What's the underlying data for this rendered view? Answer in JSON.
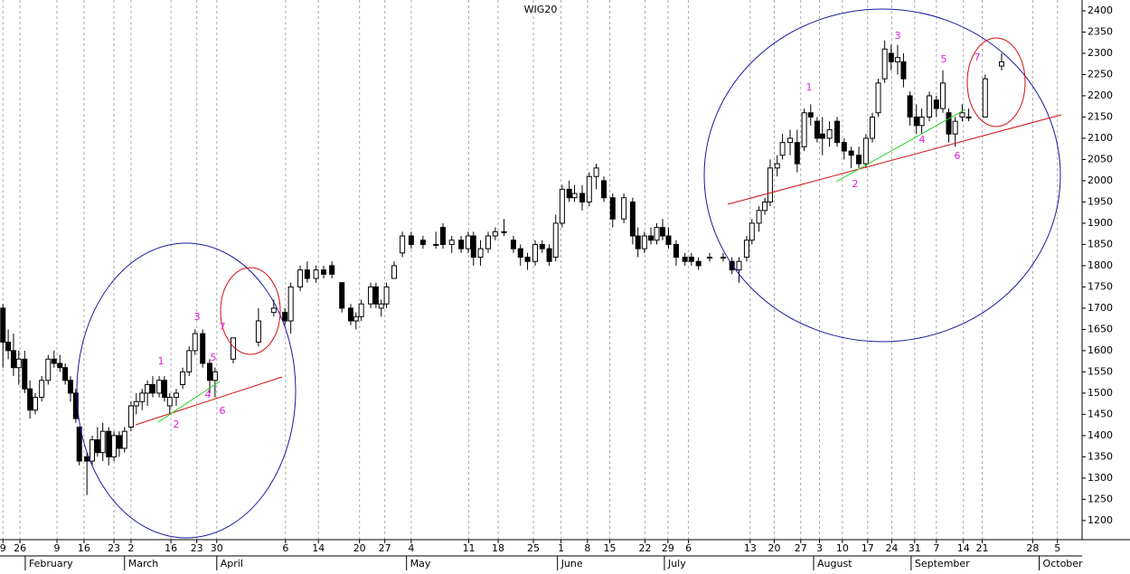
{
  "chart_data": {
    "type": "candlestick",
    "title": "WIG20",
    "x": [
      0.5,
      1.4,
      2.3,
      3.2,
      4.2,
      5.1,
      6,
      7.1,
      8.2,
      9.2,
      10.2,
      11.1,
      12,
      12.9,
      13.5,
      14.8,
      15.7,
      16.6,
      17.5,
      18.5,
      19.4,
      20.3,
      21.2,
      22.3,
      23.2,
      24.2,
      25.1,
      26,
      27.1,
      28,
      28.9,
      30,
      31.1,
      32.2,
      33.2,
      34.5,
      35.7,
      36.6,
      39.7,
      44,
      46.6,
      48.5,
      49.5,
      51.1,
      52.3,
      53.8,
      55.1,
      56.5,
      58.2,
      59.7,
      60.6,
      61.5,
      63.1,
      64,
      64.9,
      65.8,
      67.1,
      68.5,
      70,
      72,
      74.2,
      75.4,
      76.9,
      78.5,
      79.7,
      80.6,
      81.8,
      83.1,
      84.3,
      85.8,
      87.4,
      88.6,
      89.8,
      91.1,
      92.3,
      93.5,
      94.6,
      95.7,
      96.9,
      97.8,
      99.1,
      100.3,
      101.5,
      102.8,
      104.3,
      106.2,
      107.7,
      108.6,
      109.7,
      110.8,
      111.8,
      112.8,
      113.8,
      115.1,
      116.6,
      117.7,
      118.9,
      120.8,
      123.1,
      124.6,
      125.8,
      127.1,
      128,
      129.2,
      130.2,
      131.1,
      132.3,
      133.2,
      134.5,
      135.7,
      136.9,
      138,
      139.1,
      140,
      141.2,
      142.5,
      143.7,
      144.9,
      146.2,
      147.4,
      148.5,
      149.5,
      150.6,
      151.7,
      152.8,
      153.8,
      154.9,
      156,
      156.9,
      158.2,
      159.4,
      160.5,
      161.5,
      162.6,
      163.8,
      164.9,
      167.7,
      170.5
    ],
    "open": [
      1700,
      1620,
      1600,
      1560,
      1580,
      1510,
      1460,
      1490,
      1530,
      1580,
      1570,
      1560,
      1530,
      1500,
      1420,
      1350,
      1340,
      1390,
      1360,
      1410,
      1350,
      1400,
      1370,
      1420,
      1470,
      1480,
      1500,
      1520,
      1500,
      1530,
      1470,
      1490,
      1520,
      1550,
      1600,
      1640,
      1570,
      1530,
      1580,
      1620,
      1690,
      1690,
      1670,
      1750,
      1790,
      1770,
      1790,
      1800,
      1760,
      1700,
      1670,
      1680,
      1710,
      1750,
      1700,
      1710,
      1770,
      1830,
      1870,
      1860,
      1850,
      1890,
      1850,
      1860,
      1840,
      1870,
      1820,
      1840,
      1870,
      1880,
      1860,
      1840,
      1820,
      1810,
      1850,
      1840,
      1820,
      1900,
      1980,
      1960,
      1970,
      1950,
      2010,
      2000,
      1960,
      1910,
      1950,
      1870,
      1840,
      1870,
      1860,
      1890,
      1870,
      1850,
      1820,
      1820,
      1810,
      1820,
      1820,
      1810,
      1790,
      1820,
      1860,
      1900,
      1930,
      1950,
      2030,
      2060,
      2090,
      2090,
      2080,
      2160,
      2140,
      2110,
      2100,
      2140,
      2090,
      2070,
      2060,
      2040,
      2100,
      2160,
      2240,
      2300,
      2280,
      2280,
      2200,
      2150,
      2130,
      2150,
      2190,
      2170,
      2160,
      2110,
      2150,
      2150,
      2150,
      2270
    ],
    "high": [
      1710,
      1650,
      1640,
      1600,
      1600,
      1530,
      1500,
      1540,
      1590,
      1600,
      1590,
      1570,
      1540,
      1510,
      1420,
      1360,
      1400,
      1420,
      1430,
      1420,
      1410,
      1410,
      1420,
      1480,
      1500,
      1510,
      1530,
      1540,
      1540,
      1540,
      1500,
      1510,
      1560,
      1610,
      1650,
      1650,
      1580,
      1560,
      1630,
      1700,
      1720,
      1700,
      1760,
      1800,
      1810,
      1800,
      1800,
      1810,
      1760,
      1710,
      1690,
      1720,
      1760,
      1760,
      1720,
      1760,
      1810,
      1880,
      1880,
      1870,
      1880,
      1900,
      1870,
      1870,
      1880,
      1880,
      1860,
      1880,
      1890,
      1910,
      1870,
      1850,
      1830,
      1860,
      1860,
      1850,
      1920,
      1990,
      2000,
      1990,
      1990,
      2020,
      2040,
      2010,
      1970,
      1970,
      1960,
      1890,
      1880,
      1890,
      1900,
      1910,
      1890,
      1860,
      1830,
      1830,
      1820,
      1830,
      1830,
      1820,
      1820,
      1870,
      1910,
      1940,
      1960,
      2050,
      2060,
      2110,
      2120,
      2120,
      2170,
      2180,
      2150,
      2150,
      2140,
      2150,
      2100,
      2080,
      2080,
      2110,
      2160,
      2240,
      2330,
      2320,
      2320,
      2300,
      2210,
      2180,
      2170,
      2210,
      2200,
      2260,
      2170,
      2150,
      2180,
      2170,
      2250,
      2300
    ],
    "low": [
      1560,
      1580,
      1540,
      1520,
      1500,
      1440,
      1450,
      1480,
      1520,
      1560,
      1550,
      1520,
      1480,
      1430,
      1330,
      1260,
      1330,
      1350,
      1340,
      1330,
      1340,
      1350,
      1360,
      1410,
      1450,
      1460,
      1470,
      1490,
      1490,
      1480,
      1450,
      1470,
      1510,
      1540,
      1590,
      1560,
      1500,
      1490,
      1570,
      1610,
      1680,
      1660,
      1640,
      1740,
      1760,
      1760,
      1770,
      1770,
      1690,
      1660,
      1650,
      1670,
      1700,
      1700,
      1680,
      1700,
      1770,
      1820,
      1840,
      1840,
      1840,
      1840,
      1830,
      1830,
      1830,
      1800,
      1800,
      1830,
      1860,
      1870,
      1830,
      1800,
      1790,
      1800,
      1830,
      1800,
      1810,
      1890,
      1950,
      1950,
      1930,
      1940,
      1980,
      1950,
      1890,
      1900,
      1850,
      1820,
      1830,
      1850,
      1850,
      1860,
      1840,
      1800,
      1800,
      1800,
      1790,
      1810,
      1810,
      1780,
      1760,
      1810,
      1850,
      1880,
      1920,
      1940,
      2010,
      2050,
      2060,
      2020,
      2070,
      2130,
      2090,
      2060,
      2080,
      2080,
      2050,
      2030,
      2030,
      2030,
      2090,
      2150,
      2230,
      2260,
      2250,
      2220,
      2130,
      2110,
      2110,
      2140,
      2150,
      2160,
      2090,
      2080,
      2140,
      2140,
      2150,
      2260
    ],
    "close": [
      1620,
      1600,
      1560,
      1580,
      1510,
      1460,
      1490,
      1530,
      1580,
      1570,
      1560,
      1530,
      1500,
      1440,
      1340,
      1340,
      1390,
      1360,
      1410,
      1350,
      1400,
      1370,
      1410,
      1470,
      1480,
      1500,
      1520,
      1500,
      1530,
      1490,
      1490,
      1500,
      1550,
      1600,
      1640,
      1570,
      1530,
      1550,
      1630,
      1670,
      1700,
      1670,
      1750,
      1790,
      1770,
      1790,
      1780,
      1780,
      1700,
      1670,
      1680,
      1710,
      1750,
      1710,
      1710,
      1750,
      1800,
      1870,
      1850,
      1850,
      1850,
      1850,
      1860,
      1840,
      1870,
      1820,
      1840,
      1870,
      1880,
      1880,
      1840,
      1820,
      1810,
      1850,
      1840,
      1810,
      1900,
      1980,
      1960,
      1970,
      1950,
      2010,
      2030,
      1960,
      1910,
      1960,
      1870,
      1840,
      1870,
      1860,
      1890,
      1870,
      1850,
      1820,
      1810,
      1810,
      1800,
      1820,
      1820,
      1790,
      1810,
      1860,
      1900,
      1930,
      1950,
      2030,
      2040,
      2090,
      2100,
      2040,
      2160,
      2150,
      2100,
      2100,
      2120,
      2090,
      2070,
      2060,
      2040,
      2100,
      2150,
      2230,
      2310,
      2280,
      2290,
      2240,
      2150,
      2130,
      2150,
      2200,
      2170,
      2230,
      2110,
      2140,
      2160,
      2150,
      2240,
      2280
    ],
    "xlim": [
      0,
      184.2
    ],
    "ylim": [
      1155,
      2425.5
    ],
    "yticks": [
      1200,
      1250,
      1300,
      1350,
      1400,
      1450,
      1500,
      1550,
      1600,
      1650,
      1700,
      1750,
      1800,
      1850,
      1900,
      1950,
      2000,
      2050,
      2100,
      2150,
      2200,
      2250,
      2300,
      2350,
      2400
    ],
    "xticks": [
      {
        "value": 0.5,
        "label": "9"
      },
      {
        "value": 3.4,
        "label": "26"
      },
      {
        "value": 9.7,
        "label": "9"
      },
      {
        "value": 14.3,
        "label": "16"
      },
      {
        "value": 19.4,
        "label": "23"
      },
      {
        "value": 22.3,
        "label": "2"
      },
      {
        "value": 29.1,
        "label": "16"
      },
      {
        "value": 33.5,
        "label": "23"
      },
      {
        "value": 36.9,
        "label": "30"
      },
      {
        "value": 48.6,
        "label": "6"
      },
      {
        "value": 54.2,
        "label": "14"
      },
      {
        "value": 61.2,
        "label": "20"
      },
      {
        "value": 65.5,
        "label": "27"
      },
      {
        "value": 70,
        "label": "4"
      },
      {
        "value": 79.8,
        "label": "11"
      },
      {
        "value": 84.8,
        "label": "18"
      },
      {
        "value": 90.8,
        "label": "25"
      },
      {
        "value": 95.5,
        "label": "1"
      },
      {
        "value": 100,
        "label": "8"
      },
      {
        "value": 103.8,
        "label": "15"
      },
      {
        "value": 109.8,
        "label": "22"
      },
      {
        "value": 113.7,
        "label": "29"
      },
      {
        "value": 117.2,
        "label": "6"
      },
      {
        "value": 127.7,
        "label": "13"
      },
      {
        "value": 131.8,
        "label": "20"
      },
      {
        "value": 136.3,
        "label": "27"
      },
      {
        "value": 139.5,
        "label": "3"
      },
      {
        "value": 143.4,
        "label": "10"
      },
      {
        "value": 147.7,
        "label": "17"
      },
      {
        "value": 151.8,
        "label": "24"
      },
      {
        "value": 155.7,
        "label": "31"
      },
      {
        "value": 159.4,
        "label": "7"
      },
      {
        "value": 164,
        "label": "14"
      },
      {
        "value": 167.2,
        "label": "21"
      },
      {
        "value": 175.8,
        "label": "28"
      },
      {
        "value": 180,
        "label": "5"
      }
    ],
    "months": [
      {
        "value": 4.3,
        "label": "February"
      },
      {
        "value": 21.2,
        "label": "March"
      },
      {
        "value": 36.9,
        "label": "April"
      },
      {
        "value": 69.2,
        "label": "May"
      },
      {
        "value": 94.9,
        "label": "June"
      },
      {
        "value": 113.1,
        "label": "July"
      },
      {
        "value": 138.5,
        "label": "August"
      },
      {
        "value": 155.1,
        "label": "September"
      },
      {
        "value": 176.9,
        "label": "October"
      }
    ],
    "annotations": [
      "1",
      "2",
      "3",
      "4",
      "5",
      "6",
      "7"
    ],
    "grid": true
  }
}
